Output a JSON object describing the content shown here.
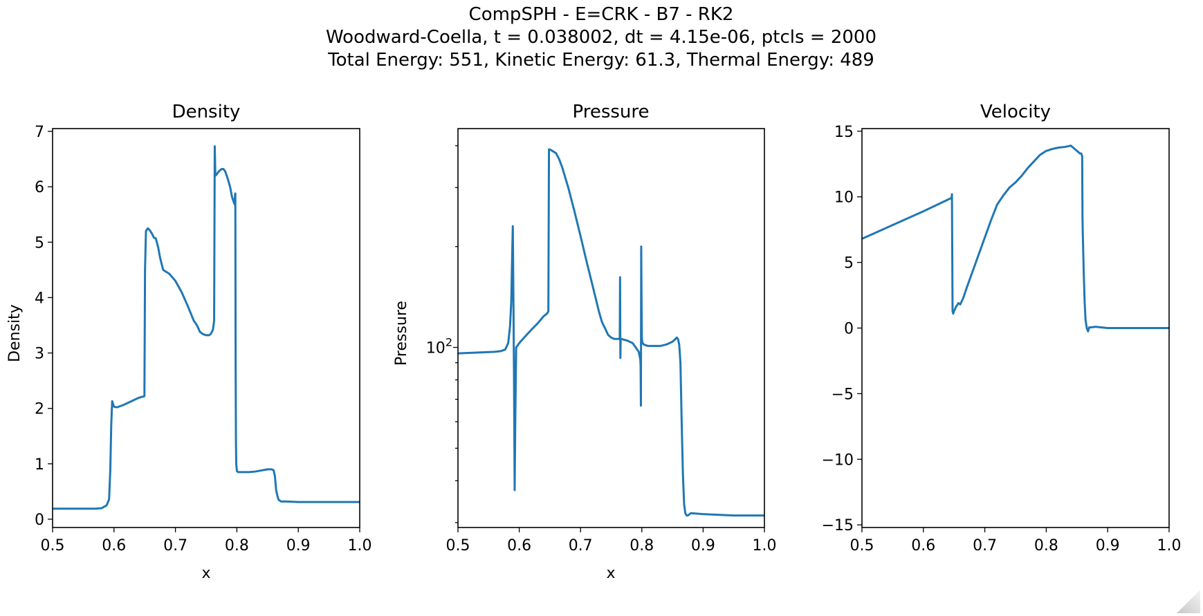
{
  "figure": {
    "title_lines": [
      "CompSPH - E=CRK - B7 - RK2",
      "Woodward-Coella, t = 0.038002, dt = 4.15e-06, ptcls = 2000",
      "Total Energy: 551, Kinetic Energy: 61.3, Thermal Energy: 489"
    ]
  },
  "chart_data": [
    {
      "type": "line",
      "title": "Density",
      "xlabel": "x",
      "ylabel": "Density",
      "xlim": [
        0.5,
        1.0
      ],
      "ylim": [
        -0.15,
        7.05
      ],
      "yscale": "linear",
      "xticks": [
        {
          "v": 0.5,
          "label": "0.5"
        },
        {
          "v": 0.6,
          "label": "0.6"
        },
        {
          "v": 0.7,
          "label": "0.7"
        },
        {
          "v": 0.8,
          "label": "0.8"
        },
        {
          "v": 0.9,
          "label": "0.9"
        },
        {
          "v": 1.0,
          "label": "1.0"
        }
      ],
      "yticks": [
        {
          "v": 0,
          "label": "0"
        },
        {
          "v": 1,
          "label": "1"
        },
        {
          "v": 2,
          "label": "2"
        },
        {
          "v": 3,
          "label": "3"
        },
        {
          "v": 4,
          "label": "4"
        },
        {
          "v": 5,
          "label": "5"
        },
        {
          "v": 6,
          "label": "6"
        },
        {
          "v": 7,
          "label": "7"
        }
      ],
      "grid": false,
      "color": "#1f77b4",
      "x": [
        0.5,
        0.57,
        0.58,
        0.588,
        0.592,
        0.594,
        0.5955,
        0.597,
        0.6,
        0.605,
        0.615,
        0.64,
        0.6495,
        0.6505,
        0.652,
        0.655,
        0.658,
        0.662,
        0.665,
        0.668,
        0.672,
        0.675,
        0.68,
        0.69,
        0.7,
        0.71,
        0.72,
        0.73,
        0.735,
        0.74,
        0.745,
        0.75,
        0.755,
        0.758,
        0.761,
        0.763,
        0.764,
        0.7645,
        0.765,
        0.767,
        0.77,
        0.775,
        0.778,
        0.781,
        0.785,
        0.789,
        0.792,
        0.795,
        0.7965,
        0.797,
        0.7975,
        0.798,
        0.7985,
        0.799,
        0.8,
        0.802,
        0.805,
        0.81,
        0.82,
        0.83,
        0.84,
        0.85,
        0.857,
        0.86,
        0.862,
        0.864,
        0.866,
        0.868,
        0.872,
        0.88,
        0.9,
        1.0
      ],
      "y": [
        0.19,
        0.19,
        0.2,
        0.25,
        0.36,
        0.9,
        1.7,
        2.13,
        2.03,
        2.02,
        2.06,
        2.19,
        2.22,
        4.5,
        5.2,
        5.25,
        5.22,
        5.15,
        5.08,
        5.07,
        4.9,
        4.72,
        4.5,
        4.43,
        4.3,
        4.1,
        3.85,
        3.58,
        3.5,
        3.38,
        3.34,
        3.32,
        3.32,
        3.35,
        3.42,
        3.58,
        6.73,
        6.45,
        6.2,
        6.22,
        6.27,
        6.32,
        6.32,
        6.28,
        6.15,
        6.0,
        5.82,
        5.72,
        5.68,
        5.86,
        5.88,
        2.8,
        1.4,
        1.0,
        0.87,
        0.85,
        0.85,
        0.85,
        0.85,
        0.86,
        0.88,
        0.9,
        0.9,
        0.88,
        0.77,
        0.52,
        0.42,
        0.35,
        0.32,
        0.32,
        0.31,
        0.31
      ]
    },
    {
      "type": "line",
      "title": "Pressure",
      "xlabel": "x",
      "ylabel": "Pressure",
      "xlim": [
        0.5,
        1.0
      ],
      "ylim": [
        29.0,
        450.0
      ],
      "yscale": "log",
      "xticks": [
        {
          "v": 0.5,
          "label": "0.5"
        },
        {
          "v": 0.6,
          "label": "0.6"
        },
        {
          "v": 0.7,
          "label": "0.7"
        },
        {
          "v": 0.8,
          "label": "0.8"
        },
        {
          "v": 0.9,
          "label": "0.9"
        },
        {
          "v": 1.0,
          "label": "1.0"
        }
      ],
      "yticks": [
        {
          "v": 100,
          "label": "10",
          "exp": "2"
        }
      ],
      "grid": false,
      "color": "#1f77b4",
      "x": [
        0.5,
        0.56,
        0.57,
        0.577,
        0.582,
        0.585,
        0.587,
        0.5885,
        0.5895,
        0.5905,
        0.5915,
        0.5925,
        0.5935,
        0.595,
        0.6,
        0.61,
        0.62,
        0.63,
        0.64,
        0.645,
        0.6475,
        0.6485,
        0.65,
        0.655,
        0.66,
        0.665,
        0.67,
        0.68,
        0.69,
        0.7,
        0.71,
        0.72,
        0.73,
        0.735,
        0.74,
        0.745,
        0.75,
        0.755,
        0.76,
        0.764,
        0.7645,
        0.765,
        0.7655,
        0.7665,
        0.767,
        0.77,
        0.775,
        0.78,
        0.785,
        0.79,
        0.795,
        0.7975,
        0.798,
        0.7985,
        0.799,
        0.7995,
        0.8,
        0.8005,
        0.8015,
        0.803,
        0.81,
        0.82,
        0.83,
        0.84,
        0.85,
        0.855,
        0.857,
        0.859,
        0.861,
        0.863,
        0.865,
        0.867,
        0.869,
        0.871,
        0.873,
        0.875,
        0.88,
        0.9,
        0.95,
        1.0
      ],
      "y": [
        96,
        97,
        97.5,
        98.5,
        103,
        116,
        137,
        190,
        230,
        138,
        80,
        37.5,
        60,
        100,
        103,
        108,
        113,
        118,
        124,
        126,
        128,
        390,
        390,
        385,
        380,
        365,
        345,
        300,
        255,
        215,
        180,
        152,
        128,
        119,
        114,
        109,
        107,
        106,
        106,
        106,
        162,
        93,
        106,
        106,
        106,
        105.5,
        105,
        104,
        103,
        100,
        97,
        92,
        88,
        67,
        200,
        140,
        108,
        104,
        103,
        102,
        101,
        101,
        101,
        102,
        104,
        106,
        107,
        106,
        102,
        90,
        60,
        42,
        34,
        32,
        31.5,
        31.5,
        32,
        31.8,
        31.5,
        31.5
      ]
    },
    {
      "type": "line",
      "title": "Velocity",
      "xlabel": "",
      "ylabel": "",
      "xlim": [
        0.5,
        1.0
      ],
      "ylim": [
        -15.2,
        15.2
      ],
      "yscale": "linear",
      "xticks": [
        {
          "v": 0.5,
          "label": "0.5"
        },
        {
          "v": 0.6,
          "label": "0.6"
        },
        {
          "v": 0.7,
          "label": "0.7"
        },
        {
          "v": 0.8,
          "label": "0.8"
        },
        {
          "v": 0.9,
          "label": "0.9"
        },
        {
          "v": 1.0,
          "label": "1.0"
        }
      ],
      "yticks": [
        {
          "v": -15,
          "label": "−15"
        },
        {
          "v": -10,
          "label": "−10"
        },
        {
          "v": -5,
          "label": "−5"
        },
        {
          "v": 0,
          "label": "0"
        },
        {
          "v": 5,
          "label": "5"
        },
        {
          "v": 10,
          "label": "10"
        },
        {
          "v": 15,
          "label": "15"
        }
      ],
      "grid": false,
      "color": "#1f77b4",
      "x": [
        0.5,
        0.6,
        0.645,
        0.646,
        0.6465,
        0.6475,
        0.6485,
        0.65,
        0.653,
        0.657,
        0.66,
        0.665,
        0.67,
        0.68,
        0.69,
        0.7,
        0.71,
        0.72,
        0.73,
        0.74,
        0.75,
        0.76,
        0.77,
        0.78,
        0.79,
        0.8,
        0.81,
        0.82,
        0.83,
        0.84,
        0.85,
        0.855,
        0.857,
        0.8585,
        0.859,
        0.8595,
        0.861,
        0.8625,
        0.864,
        0.866,
        0.868,
        0.87,
        0.873,
        0.876,
        0.88,
        0.9,
        0.95,
        1.0
      ],
      "y": [
        6.8,
        8.9,
        9.9,
        9.95,
        10.2,
        1.3,
        1.1,
        1.3,
        1.6,
        1.9,
        1.8,
        2.3,
        3.0,
        4.3,
        5.6,
        6.9,
        8.2,
        9.4,
        10.1,
        10.7,
        11.1,
        11.6,
        12.2,
        12.7,
        13.2,
        13.5,
        13.65,
        13.75,
        13.8,
        13.9,
        13.5,
        13.3,
        13.3,
        13.1,
        8.5,
        7.2,
        4.3,
        2.0,
        0.6,
        0.0,
        -0.25,
        0.05,
        0.05,
        0.07,
        0.1,
        0.0,
        0.0,
        0.0
      ]
    }
  ]
}
